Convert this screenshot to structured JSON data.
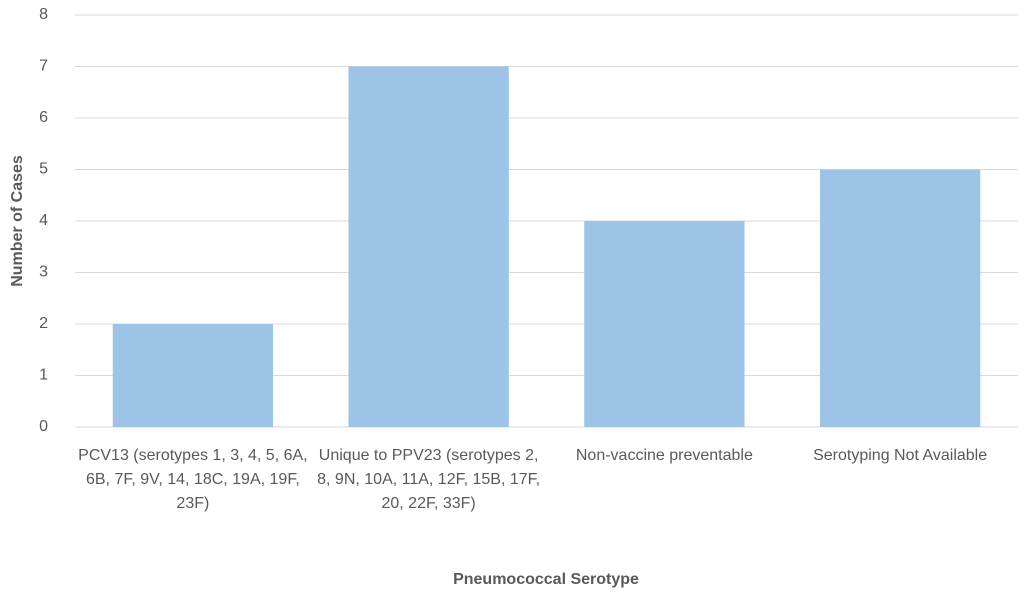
{
  "chart_data": {
    "type": "bar",
    "x_label": "Pneumococcal Serotype",
    "y_label": "Number of Cases",
    "categories": [
      "PCV13 (serotypes 1, 3, 4, 5, 6A, 6B, 7F, 9V, 14, 18C, 19A, 19F, 23F)",
      "Unique to PPV23 (serotypes 2, 8, 9N, 10A, 11A, 12F, 15B, 17F, 20, 22F, 33F)",
      "Non-vaccine preventable",
      "Serotyping Not Available"
    ],
    "values": [
      2,
      7,
      4,
      5
    ],
    "color": "#9dc3e6",
    "ylim": [
      0,
      8
    ],
    "yticks": [
      0,
      1,
      2,
      3,
      4,
      5,
      6,
      7,
      8
    ],
    "grid": true
  }
}
